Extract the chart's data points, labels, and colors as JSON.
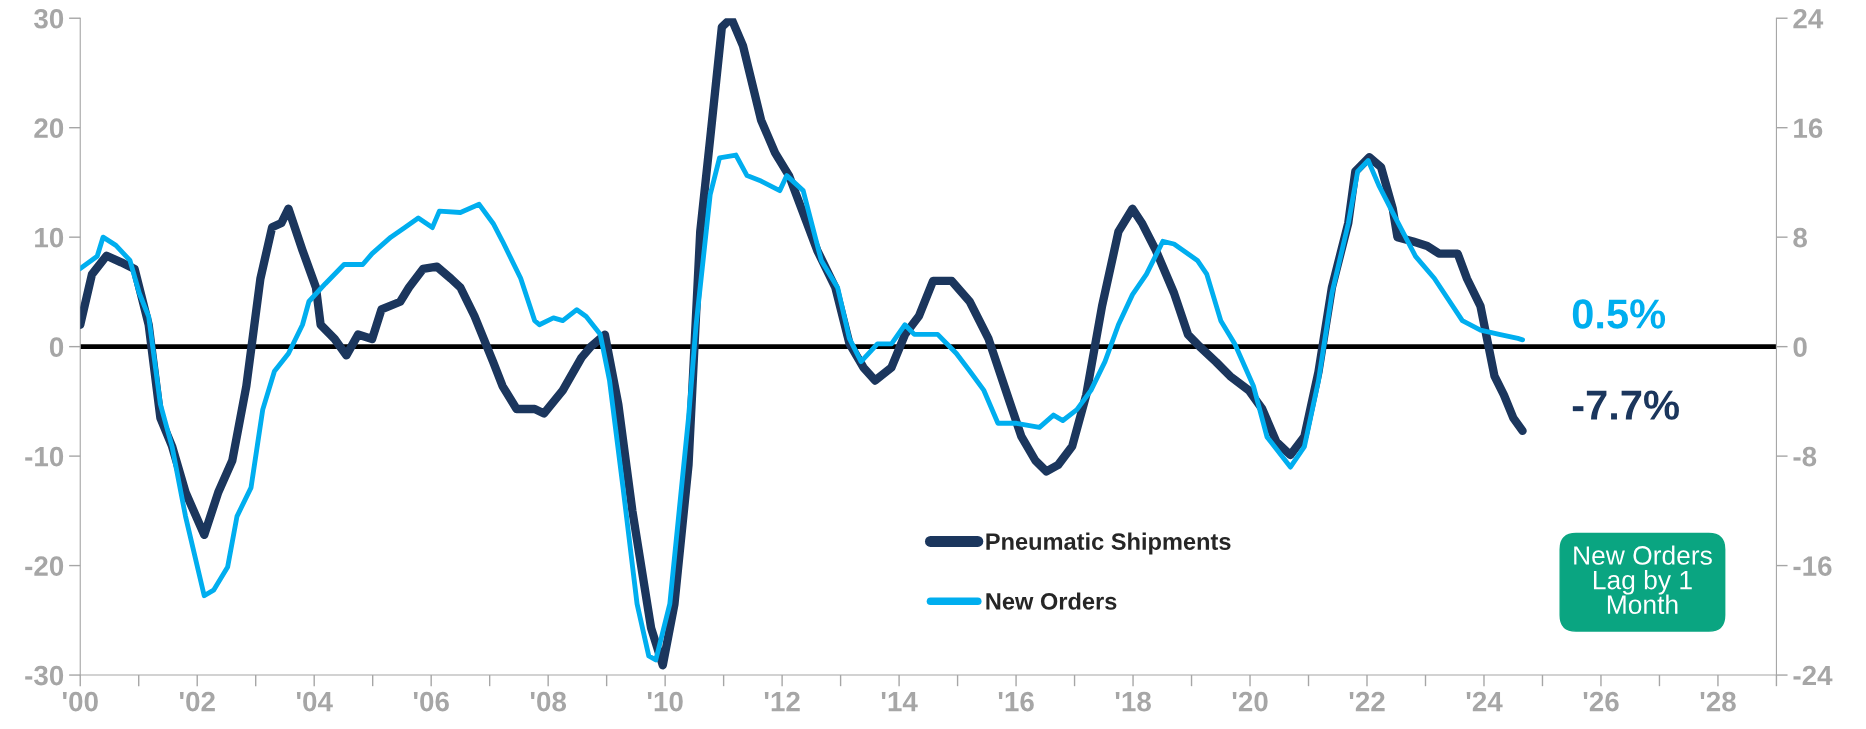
{
  "chart_data": {
    "type": "line",
    "series": [
      {
        "name": "Pneumatic Shipments",
        "color": "#1b365d",
        "x": [
          2000.0,
          2000.2,
          2000.45,
          2000.7,
          2000.93,
          2001.17,
          2001.37,
          2001.57,
          2001.8,
          2002.12,
          2002.36,
          2002.6,
          2002.84,
          2003.08,
          2003.28,
          2003.44,
          2003.56,
          2003.8,
          2004.03,
          2004.11,
          2004.35,
          2004.55,
          2004.75,
          2004.99,
          2005.15,
          2005.47,
          2005.62,
          2005.86,
          2006.1,
          2006.34,
          2006.5,
          2006.74,
          2007.06,
          2007.22,
          2007.46,
          2007.77,
          2007.93,
          2008.25,
          2008.57,
          2008.73,
          2008.97,
          2009.2,
          2009.44,
          2009.76,
          2009.96,
          2010.16,
          2010.4,
          2010.6,
          2010.77,
          2010.97,
          2011.13,
          2011.33,
          2011.64,
          2011.88,
          2012.12,
          2012.36,
          2012.6,
          2012.91,
          2013.15,
          2013.39,
          2013.59,
          2013.87,
          2014.1,
          2014.34,
          2014.58,
          2014.9,
          2015.21,
          2015.53,
          2015.85,
          2016.09,
          2016.33,
          2016.52,
          2016.72,
          2016.96,
          2017.2,
          2017.47,
          2017.75,
          2017.99,
          2018.15,
          2018.39,
          2018.7,
          2018.94,
          2019.14,
          2019.42,
          2019.66,
          2019.98,
          2020.21,
          2020.45,
          2020.69,
          2020.93,
          2021.17,
          2021.4,
          2021.68,
          2021.8,
          2022.04,
          2022.24,
          2022.44,
          2022.52,
          2022.79,
          2023.03,
          2023.23,
          2023.55,
          2023.71,
          2023.94,
          2024.18,
          2024.34,
          2024.5,
          2024.66
        ],
        "values": [
          2.0,
          6.6,
          8.3,
          7.7,
          7.1,
          2.0,
          -6.5,
          -9.1,
          -13.3,
          -17.2,
          -13.3,
          -10.4,
          -3.6,
          6.2,
          10.9,
          11.3,
          12.6,
          8.8,
          5.4,
          2.0,
          0.7,
          -0.8,
          1.1,
          0.7,
          3.4,
          4.1,
          5.4,
          7.1,
          7.3,
          6.2,
          5.4,
          2.8,
          -1.4,
          -3.6,
          -5.7,
          -5.7,
          -6.1,
          -4.0,
          -1.0,
          0.0,
          1.1,
          -5.3,
          -15.0,
          -25.7,
          -29.1,
          -23.5,
          -10.8,
          10.5,
          19.0,
          29.2,
          30.0,
          27.5,
          20.7,
          17.7,
          15.6,
          12.2,
          8.8,
          5.4,
          0.3,
          -1.9,
          -3.1,
          -1.9,
          1.1,
          2.8,
          6.0,
          6.0,
          4.1,
          0.7,
          -4.4,
          -8.2,
          -10.4,
          -11.4,
          -10.8,
          -9.1,
          -4.4,
          3.7,
          10.5,
          12.6,
          11.3,
          8.8,
          4.9,
          1.1,
          0.0,
          -1.4,
          -2.7,
          -4.0,
          -5.7,
          -8.7,
          -9.9,
          -8.2,
          -2.3,
          5.4,
          11.3,
          16.0,
          17.3,
          16.4,
          12.6,
          10.0,
          9.6,
          9.2,
          8.5,
          8.5,
          6.2,
          3.7,
          -2.7,
          -4.4,
          -6.5,
          -7.7
        ]
      },
      {
        "name": "New Orders",
        "color": "#00aeef",
        "axis": "y2",
        "x": [
          2000.0,
          2000.29,
          2000.39,
          2000.61,
          2000.85,
          2001.01,
          2001.17,
          2001.37,
          2001.57,
          2001.8,
          2002.12,
          2002.28,
          2002.52,
          2002.68,
          2002.92,
          2003.12,
          2003.32,
          2003.56,
          2003.8,
          2003.91,
          2004.19,
          2004.51,
          2004.83,
          2004.99,
          2005.31,
          2005.55,
          2005.78,
          2006.02,
          2006.14,
          2006.5,
          2006.82,
          2007.06,
          2007.22,
          2007.53,
          2007.77,
          2007.85,
          2008.09,
          2008.25,
          2008.49,
          2008.65,
          2008.89,
          2009.05,
          2009.28,
          2009.52,
          2009.72,
          2009.84,
          2010.08,
          2010.4,
          2010.53,
          2010.77,
          2010.93,
          2011.21,
          2011.4,
          2011.64,
          2011.96,
          2012.08,
          2012.36,
          2012.67,
          2012.95,
          2013.15,
          2013.35,
          2013.63,
          2013.87,
          2014.1,
          2014.26,
          2014.66,
          2014.98,
          2015.21,
          2015.45,
          2015.69,
          2016.01,
          2016.4,
          2016.64,
          2016.8,
          2017.04,
          2017.28,
          2017.52,
          2017.75,
          2017.99,
          2018.23,
          2018.51,
          2018.7,
          2019.1,
          2019.26,
          2019.5,
          2019.74,
          2020.06,
          2020.29,
          2020.69,
          2020.93,
          2021.17,
          2021.4,
          2021.68,
          2021.84,
          2022.02,
          2022.2,
          2022.44,
          2022.83,
          2023.15,
          2023.63,
          2023.94,
          2024.26,
          2024.58,
          2024.66
        ],
        "values": [
          5.7,
          6.6,
          8.0,
          7.4,
          6.3,
          3.9,
          2.2,
          -4.2,
          -7.3,
          -12.4,
          -18.2,
          -17.8,
          -16.1,
          -12.4,
          -10.3,
          -4.6,
          -1.8,
          -0.5,
          1.6,
          3.3,
          4.6,
          6.0,
          6.0,
          6.8,
          8.0,
          8.7,
          9.4,
          8.7,
          9.9,
          9.8,
          10.4,
          9.0,
          7.7,
          5.0,
          1.9,
          1.6,
          2.1,
          1.9,
          2.7,
          2.2,
          0.9,
          -2.5,
          -10.3,
          -18.8,
          -22.6,
          -22.9,
          -18.8,
          -5.2,
          1.6,
          11.1,
          13.8,
          14.0,
          12.5,
          12.1,
          11.4,
          12.5,
          11.4,
          6.3,
          4.3,
          0.6,
          -1.1,
          0.2,
          0.2,
          1.6,
          0.9,
          0.9,
          -0.5,
          -1.8,
          -3.2,
          -5.6,
          -5.6,
          -5.9,
          -5.0,
          -5.4,
          -4.6,
          -3.2,
          -1.1,
          1.6,
          3.8,
          5.3,
          7.7,
          7.5,
          6.3,
          5.3,
          1.9,
          0.2,
          -2.9,
          -6.6,
          -8.8,
          -7.3,
          -2.5,
          3.9,
          9.0,
          12.8,
          13.6,
          11.8,
          9.8,
          6.6,
          5.0,
          1.9,
          1.2,
          0.9,
          0.6,
          0.5
        ]
      }
    ],
    "xlim": [
      2000,
      2029
    ],
    "xticks": [
      {
        "value": 2000,
        "label": "'00"
      },
      {
        "value": 2001,
        "label": null
      },
      {
        "value": 2002,
        "label": "'02"
      },
      {
        "value": 2003,
        "label": null
      },
      {
        "value": 2004,
        "label": "'04"
      },
      {
        "value": 2005,
        "label": null
      },
      {
        "value": 2006,
        "label": "'06"
      },
      {
        "value": 2007,
        "label": null
      },
      {
        "value": 2008,
        "label": "'08"
      },
      {
        "value": 2009,
        "label": null
      },
      {
        "value": 2010,
        "label": "'10"
      },
      {
        "value": 2011,
        "label": null
      },
      {
        "value": 2012,
        "label": "'12"
      },
      {
        "value": 2013,
        "label": null
      },
      {
        "value": 2014,
        "label": "'14"
      },
      {
        "value": 2015,
        "label": null
      },
      {
        "value": 2016,
        "label": "'16"
      },
      {
        "value": 2017,
        "label": null
      },
      {
        "value": 2018,
        "label": "'18"
      },
      {
        "value": 2019,
        "label": null
      },
      {
        "value": 2020,
        "label": "'20"
      },
      {
        "value": 2021,
        "label": null
      },
      {
        "value": 2022,
        "label": "'22"
      },
      {
        "value": 2023,
        "label": null
      },
      {
        "value": 2024,
        "label": "'24"
      },
      {
        "value": 2025,
        "label": null
      },
      {
        "value": 2026,
        "label": "'26"
      },
      {
        "value": 2027,
        "label": null
      },
      {
        "value": 2028,
        "label": "'28"
      },
      {
        "value": 2029,
        "label": null
      }
    ],
    "ylim": [
      -30,
      30
    ],
    "yticks": [
      -30,
      -20,
      -10,
      0,
      10,
      20,
      30
    ],
    "y2lim": [
      -24,
      24
    ],
    "y2ticks": [
      -24,
      -16,
      -8,
      0,
      8,
      16,
      24
    ],
    "ref_lines": [
      {
        "axis": "y",
        "value": 0,
        "color": "#000000"
      }
    ],
    "annotations": [
      {
        "text": "-7.7%",
        "x": 2024.66,
        "y": -7.7
      },
      {
        "text": "0.5%",
        "x": 2024.66,
        "y": 0.5
      },
      "New Orders\nLag by 1\nMonth"
    ],
    "legend": "bottom",
    "grid": false
  }
}
